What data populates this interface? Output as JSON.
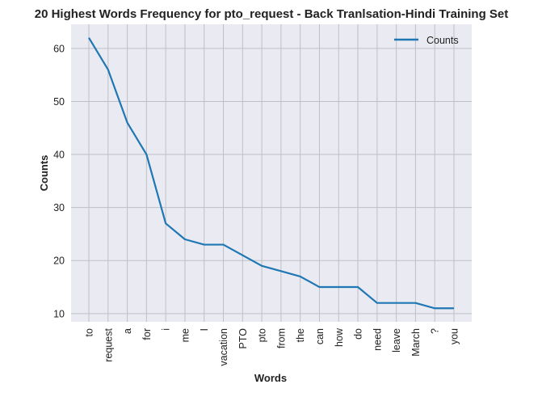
{
  "chart_data": {
    "type": "line",
    "title": "20 Highest Words Frequency for pto_request - Back Tranlsation-Hindi Training Set",
    "xlabel": "Words",
    "ylabel": "Counts",
    "categories": [
      "to",
      "request",
      "a",
      "for",
      "i",
      "me",
      "I",
      "vacation",
      "PTO",
      "pto",
      "from",
      "the",
      "can",
      "how",
      "do",
      "need",
      "leave",
      "March",
      "?",
      "you"
    ],
    "series": [
      {
        "name": "Counts",
        "values": [
          62,
          56,
          46,
          40,
          27,
          24,
          23,
          23,
          21,
          19,
          18,
          17,
          15,
          15,
          15,
          12,
          12,
          12,
          11,
          11
        ]
      }
    ],
    "yticks": [
      10,
      20,
      30,
      40,
      50,
      60
    ],
    "ylim": [
      8.45,
      64.55
    ],
    "grid": true,
    "legend_position": "top-right",
    "colors": {
      "line": "#1f77b4",
      "plot_background": "#eaeaf2",
      "grid": "#bfbfc6"
    }
  }
}
